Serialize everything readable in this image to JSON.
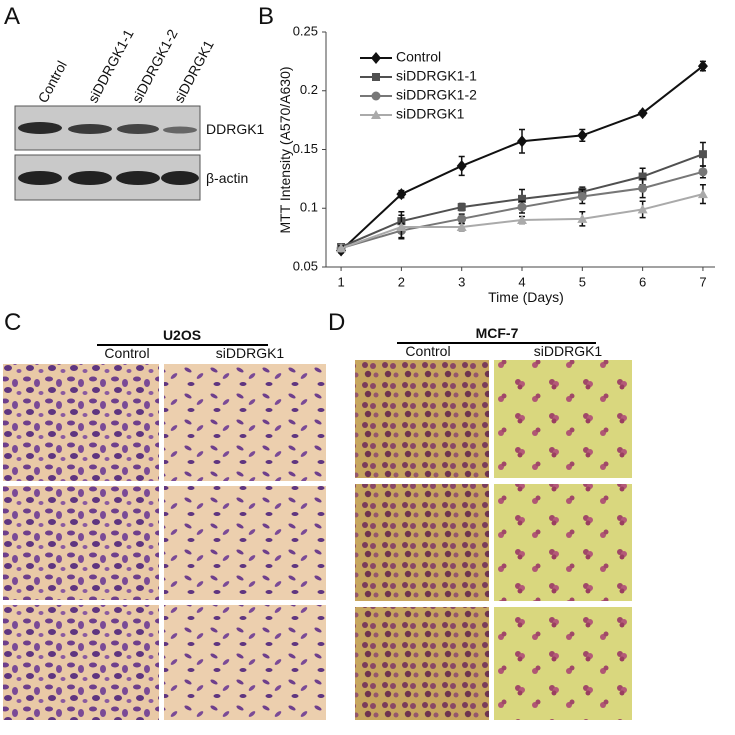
{
  "panel_a": {
    "letter": "A",
    "lanes": [
      "Control",
      "siDDRGK1-1",
      "siDDRGK1-2",
      "siDDRGK1"
    ],
    "rows": [
      "DDRGK1",
      "β-actin"
    ]
  },
  "chart_data": {
    "type": "line",
    "panel_label": "B",
    "x_label": "Time (Days)",
    "y_label": "MTT Intensity (A570/A630)",
    "x": [
      1,
      2,
      3,
      4,
      5,
      6,
      7
    ],
    "series": [
      {
        "name": "Control",
        "color": "#111111",
        "marker": "diamond",
        "values": [
          0.064,
          0.112,
          0.136,
          0.157,
          0.162,
          0.181,
          0.221
        ],
        "errors": [
          0.002,
          0.003,
          0.008,
          0.01,
          0.005,
          0.002,
          0.004
        ]
      },
      {
        "name": "siDDRGK1-1",
        "color": "#505050",
        "marker": "square",
        "values": [
          0.067,
          0.089,
          0.101,
          0.108,
          0.114,
          0.127,
          0.146
        ],
        "errors": [
          0.002,
          0.008,
          0.003,
          0.008,
          0.004,
          0.007,
          0.01
        ]
      },
      {
        "name": "siDDRGK1-2",
        "color": "#777777",
        "marker": "circle",
        "values": [
          0.066,
          0.081,
          0.091,
          0.101,
          0.11,
          0.117,
          0.131
        ],
        "errors": [
          0.002,
          0.006,
          0.004,
          0.005,
          0.006,
          0.008,
          0.005
        ]
      },
      {
        "name": "siDDRGK1",
        "color": "#aaaaaa",
        "marker": "triangle",
        "values": [
          0.066,
          0.084,
          0.084,
          0.09,
          0.091,
          0.099,
          0.112
        ],
        "errors": [
          0.002,
          0.01,
          0.003,
          0.003,
          0.006,
          0.007,
          0.008
        ]
      }
    ],
    "xlim": [
      0.75,
      7.2
    ],
    "xticks": [
      1,
      2,
      3,
      4,
      5,
      6,
      7
    ],
    "ylim": [
      0.05,
      0.25
    ],
    "yticks": [
      0.05,
      0.1,
      0.15,
      0.2,
      0.25
    ],
    "legend": "upper-left"
  },
  "panel_c": {
    "letter": "C",
    "cell_line": "U2OS",
    "columns": [
      "Control",
      "siDDRGK1"
    ]
  },
  "panel_d": {
    "letter": "D",
    "cell_line": "MCF-7",
    "columns": [
      "Control",
      "siDDRGK1"
    ]
  }
}
